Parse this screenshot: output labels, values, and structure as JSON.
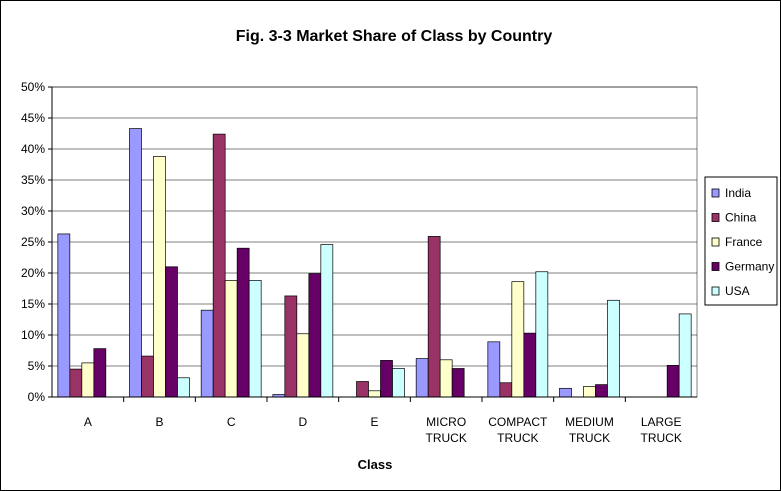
{
  "chart_data": {
    "type": "bar",
    "title": "Fig. 3-3 Market Share of Class by Country",
    "xlabel": "Class",
    "ylabel": "",
    "ylim": [
      0,
      50
    ],
    "y_ticks": [
      "0%",
      "5%",
      "10%",
      "15%",
      "20%",
      "25%",
      "30%",
      "35%",
      "40%",
      "45%",
      "50%"
    ],
    "grid": "horizontal",
    "legend_position": "right",
    "categories": [
      [
        "A"
      ],
      [
        "B"
      ],
      [
        "C"
      ],
      [
        "D"
      ],
      [
        "E"
      ],
      [
        "MICRO",
        "TRUCK"
      ],
      [
        "COMPACT",
        "TRUCK"
      ],
      [
        "MEDIUM",
        "TRUCK"
      ],
      [
        "LARGE",
        "TRUCK"
      ]
    ],
    "series": [
      {
        "name": "India",
        "color": "#9999ff",
        "values": [
          26.3,
          43.3,
          14.0,
          0.4,
          0.0,
          6.2,
          8.9,
          1.4,
          0.0
        ]
      },
      {
        "name": "China",
        "color": "#993366",
        "values": [
          4.5,
          6.6,
          42.4,
          16.3,
          2.5,
          25.9,
          2.3,
          0.0,
          0.0
        ]
      },
      {
        "name": "France",
        "color": "#ffffcc",
        "values": [
          5.5,
          38.8,
          18.8,
          10.2,
          1.0,
          6.0,
          18.6,
          1.7,
          0.0
        ]
      },
      {
        "name": "Germany",
        "color": "#660066",
        "values": [
          7.8,
          21.0,
          24.0,
          19.9,
          5.9,
          4.6,
          10.3,
          2.0,
          5.1
        ]
      },
      {
        "name": "USA",
        "color": "#ccffff",
        "values": [
          0.0,
          3.1,
          18.8,
          24.6,
          4.6,
          0.0,
          20.2,
          15.6,
          13.4
        ]
      }
    ]
  }
}
